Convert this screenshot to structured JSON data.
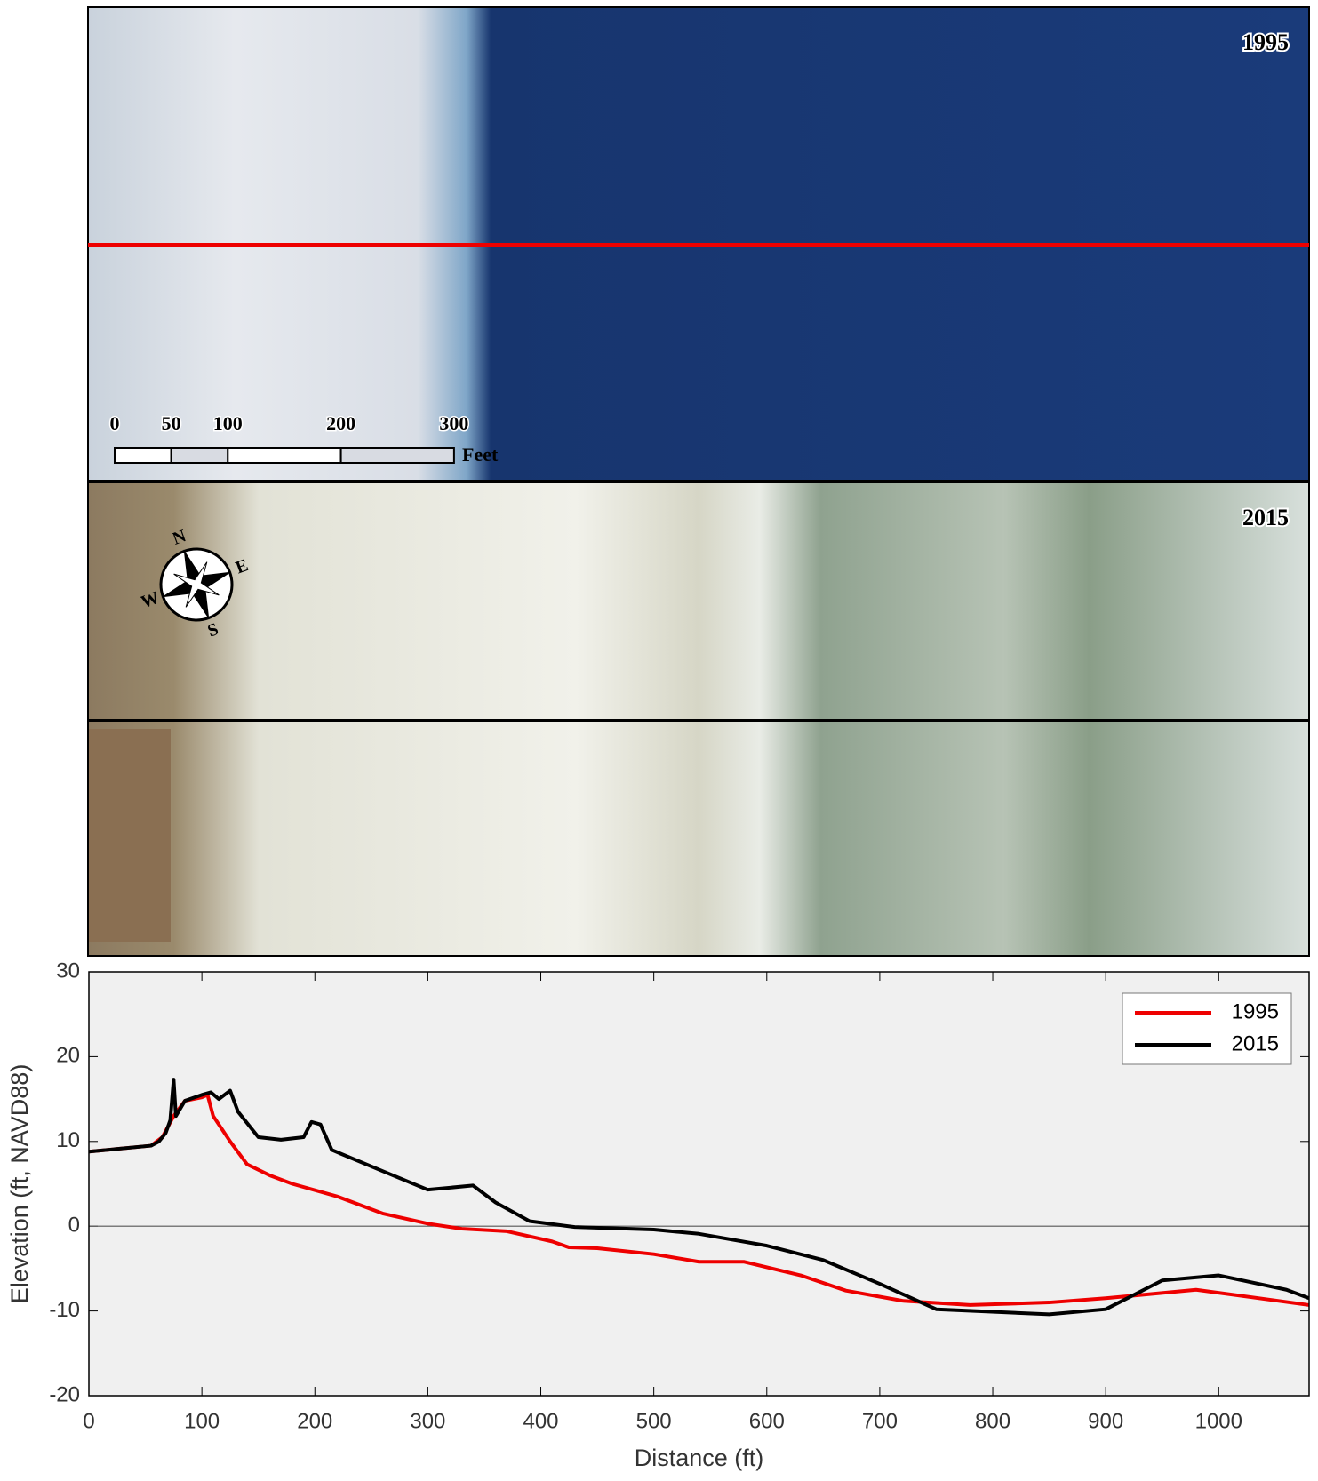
{
  "panels": [
    {
      "year": "1995"
    },
    {
      "year": "2015"
    }
  ],
  "scale_bar": {
    "ticks": [
      0,
      50,
      100,
      200,
      300
    ],
    "unit": "Feet"
  },
  "compass": {
    "n": "N",
    "e": "E",
    "s": "S",
    "w": "W"
  },
  "chart_data": {
    "type": "line",
    "xlabel": "Distance (ft)",
    "ylabel": "Elevation (ft, NAVD88)",
    "xlim": [
      0,
      1080
    ],
    "ylim": [
      -20,
      30
    ],
    "xticks": [
      0,
      100,
      200,
      300,
      400,
      500,
      600,
      700,
      800,
      900,
      1000
    ],
    "yticks": [
      -20,
      -10,
      0,
      10,
      20,
      30
    ],
    "legend": "upper right",
    "series": [
      {
        "name": "1995",
        "color": "#ee0000",
        "x": [
          0,
          55,
          65,
          75,
          85,
          100,
          105,
          110,
          125,
          140,
          160,
          180,
          220,
          260,
          300,
          330,
          370,
          410,
          425,
          450,
          500,
          540,
          580,
          630,
          670,
          720,
          780,
          850,
          900,
          980,
          1080
        ],
        "values": [
          8.8,
          9.5,
          10.5,
          13,
          14.8,
          15.2,
          15.5,
          13,
          10,
          7.3,
          6,
          5,
          3.5,
          1.5,
          0.3,
          -0.3,
          -0.6,
          -1.8,
          -2.5,
          -2.6,
          -3.3,
          -4.2,
          -4.2,
          -5.8,
          -7.6,
          -8.8,
          -9.3,
          -9,
          -8.5,
          -7.5,
          -9.3
        ]
      },
      {
        "name": "2015",
        "color": "#000000",
        "x": [
          0,
          55,
          62,
          68,
          72,
          75,
          77,
          85,
          100,
          108,
          115,
          125,
          132,
          150,
          170,
          190,
          197,
          205,
          215,
          260,
          300,
          340,
          360,
          390,
          430,
          500,
          540,
          600,
          650,
          700,
          750,
          850,
          900,
          950,
          1000,
          1060,
          1080
        ],
        "values": [
          8.8,
          9.5,
          10,
          11,
          12.5,
          17.3,
          13,
          14.8,
          15.5,
          15.8,
          15,
          16,
          13.5,
          10.5,
          10.2,
          10.5,
          12.3,
          12,
          9,
          6.5,
          4.3,
          4.8,
          2.8,
          0.6,
          -0.1,
          -0.4,
          -0.9,
          -2.3,
          -4,
          -6.8,
          -9.8,
          -10.4,
          -9.8,
          -6.4,
          -5.8,
          -7.5,
          -8.5
        ]
      }
    ]
  }
}
